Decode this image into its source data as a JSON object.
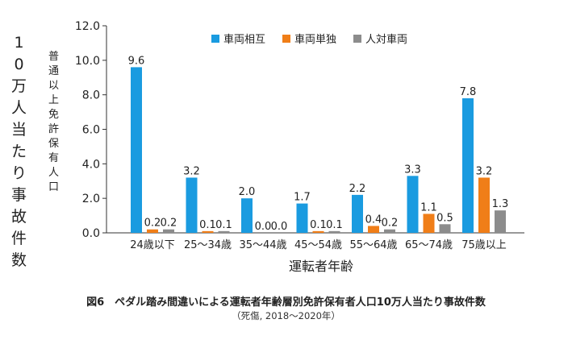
{
  "chart_data": {
    "type": "bar",
    "categories": [
      "24歳以下",
      "25～34歳",
      "35～44歳",
      "45～54歳",
      "55～64歳",
      "65～74歳",
      "75歳以上"
    ],
    "series": [
      {
        "name": "車両相互",
        "color": "#1a9be0",
        "values": [
          9.6,
          3.2,
          2.0,
          1.7,
          2.2,
          3.3,
          7.8
        ],
        "labels": [
          "9.6",
          "3.2",
          "2.0",
          "1.7",
          "2.2",
          "3.3",
          "7.8"
        ]
      },
      {
        "name": "車両単独",
        "color": "#f07e18",
        "values": [
          0.2,
          0.1,
          0.0,
          0.1,
          0.4,
          1.1,
          3.2
        ],
        "labels": [
          "0.2",
          "0.1",
          "0.0",
          "0.1",
          "0.4",
          "1.1",
          "3.2"
        ]
      },
      {
        "name": "人対車両",
        "color": "#8c8c8c",
        "values": [
          0.2,
          0.1,
          0.0,
          0.1,
          0.2,
          0.5,
          1.3
        ],
        "labels": [
          "0.2",
          "0.1",
          "0.0",
          "0.1",
          "0.2",
          "0.5",
          "1.3"
        ]
      }
    ],
    "yticks": [
      "0.0",
      "2.0",
      "4.0",
      "6.0",
      "8.0",
      "10.0",
      "12.0"
    ],
    "ylim": [
      0,
      12
    ],
    "ylabel_main": "10万人当たり事故件数",
    "ylabel_sub": "普通以上免許保有人口",
    "xlabel": "運転者年齢",
    "legend_position": "top-center",
    "grid": false
  },
  "caption": {
    "title": "図6　ペダル踏み間違いによる運転者年齢層別免許保有者人口10万人当たり事故件数",
    "subtitle": "（死傷, 2018～2020年）"
  }
}
